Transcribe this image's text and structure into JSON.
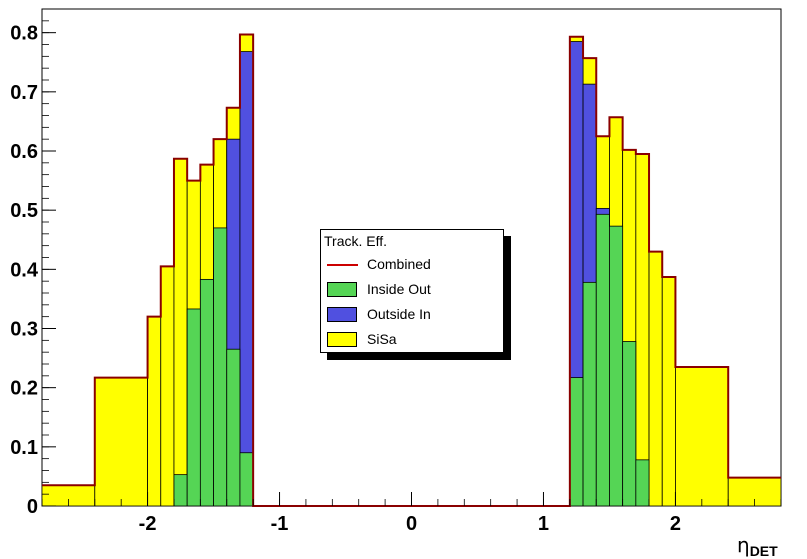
{
  "chart_data": {
    "type": "bar",
    "subtype": "stacked-step-histogram",
    "xlabel": "η",
    "xlabel_subscript": "DET",
    "xlim": [
      -2.8,
      2.8
    ],
    "ylim": [
      0,
      0.84
    ],
    "xticks": [
      -2,
      -1,
      0,
      1,
      2
    ],
    "yticks": [
      0,
      0.1,
      0.2,
      0.3,
      0.4,
      0.5,
      0.6,
      0.7,
      0.8
    ],
    "ytick_labels": [
      "0",
      "0.1",
      "0.2",
      "0.3",
      "0.4",
      "0.5",
      "0.6",
      "0.7",
      "0.8"
    ],
    "xtick_labels": [
      "-2",
      "-1",
      "0",
      "1",
      "2"
    ],
    "grid": false,
    "legend_position": "center",
    "legend_title": "Track. Eff.",
    "bin_edges": [
      -2.8,
      -2.4,
      -2.0,
      -1.9,
      -1.8,
      -1.7,
      -1.6,
      -1.5,
      -1.4,
      -1.3,
      -1.2,
      1.2,
      1.3,
      1.4,
      1.5,
      1.6,
      1.7,
      1.8,
      1.9,
      2.0,
      2.4,
      2.8
    ],
    "series": [
      {
        "name": "SiSa",
        "role": "fill",
        "color": "#ffff00",
        "values": [
          0.035,
          0.217,
          0.32,
          0.405,
          0.587,
          0.55,
          0.577,
          0.62,
          0.673,
          0.797,
          0.0,
          0.793,
          0.757,
          0.625,
          0.657,
          0.602,
          0.595,
          0.43,
          0.387,
          0.235,
          0.048
        ]
      },
      {
        "name": "Outside In",
        "role": "fill",
        "color": "#5050e0",
        "values": [
          0.0,
          0.0,
          0.0,
          0.0,
          0.0,
          0.0,
          0.0,
          0.0,
          0.62,
          0.768,
          0.0,
          0.785,
          0.713,
          0.503,
          0.0,
          0.0,
          0.0,
          0.0,
          0.0,
          0.0,
          0.0
        ]
      },
      {
        "name": "Inside Out",
        "role": "fill",
        "color": "#55d555",
        "values": [
          0.0,
          0.0,
          0.0,
          0.0,
          0.053,
          0.333,
          0.383,
          0.47,
          0.265,
          0.09,
          0.0,
          0.217,
          0.378,
          0.493,
          0.473,
          0.278,
          0.078,
          0.0,
          0.0,
          0.0,
          0.0
        ]
      },
      {
        "name": "Combined",
        "role": "line",
        "color": "#8a0000",
        "values": [
          0.035,
          0.217,
          0.32,
          0.405,
          0.587,
          0.55,
          0.577,
          0.62,
          0.673,
          0.797,
          0.0,
          0.793,
          0.757,
          0.625,
          0.657,
          0.602,
          0.595,
          0.43,
          0.387,
          0.235,
          0.048
        ]
      }
    ],
    "legend_entries": [
      {
        "label": "Combined",
        "kind": "line",
        "color": "#cc0000"
      },
      {
        "label": "Inside Out",
        "kind": "fill",
        "color": "#55d555"
      },
      {
        "label": "Outside In",
        "kind": "fill",
        "color": "#5050e0"
      },
      {
        "label": "SiSa",
        "kind": "fill",
        "color": "#ffff00"
      }
    ]
  }
}
